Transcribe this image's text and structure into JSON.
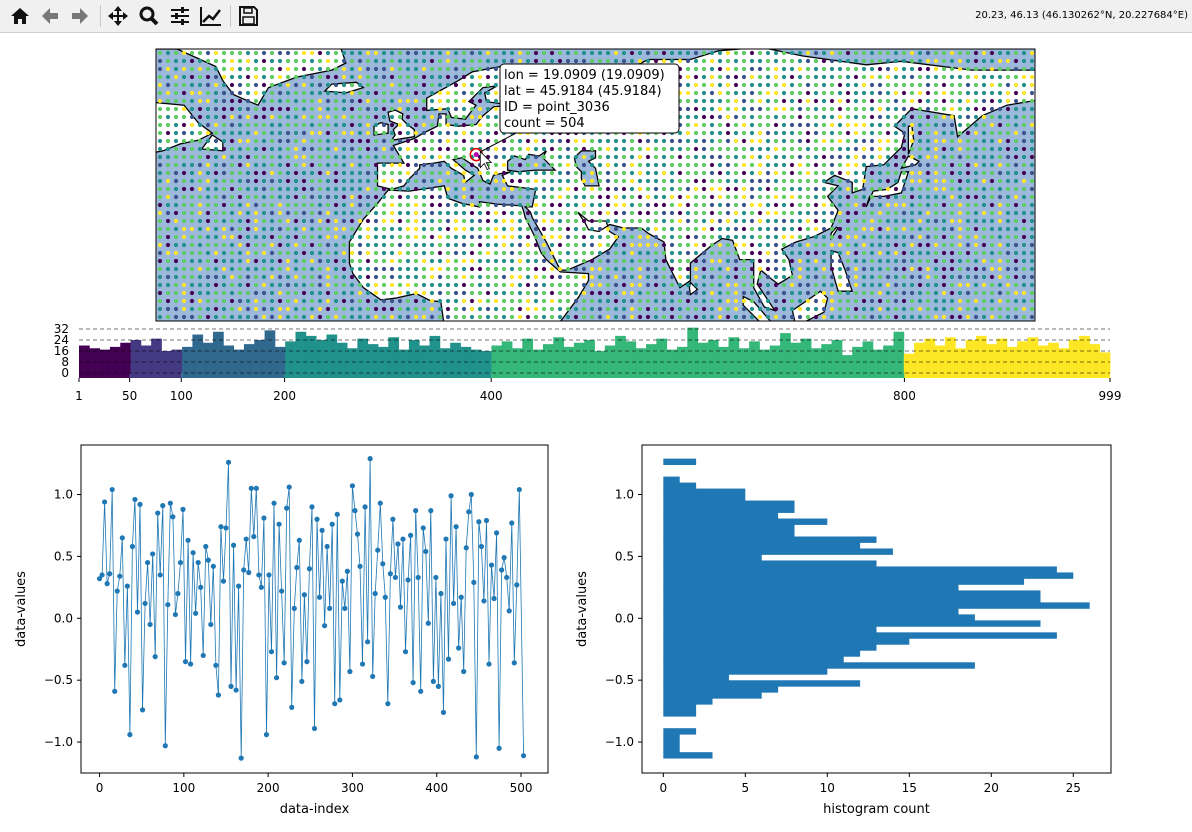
{
  "toolbar": {
    "buttons": [
      {
        "name": "home",
        "icon": "home-icon"
      },
      {
        "name": "back",
        "icon": "arrow-left-icon"
      },
      {
        "name": "forward",
        "icon": "arrow-right-icon"
      },
      {
        "name": "pan",
        "icon": "move-icon"
      },
      {
        "name": "zoom",
        "icon": "magnifier-icon"
      },
      {
        "name": "configure-subplots",
        "icon": "sliders-icon"
      },
      {
        "name": "edit-axes",
        "icon": "chart-line-icon"
      },
      {
        "name": "save",
        "icon": "floppy-disk-icon"
      }
    ],
    "status": "20.23, 46.13 (46.130262°N, 20.227684°E)"
  },
  "map": {
    "ocean_color": "#9cb9dc",
    "land_color": "#ffffff",
    "dot_colors": [
      "#440154",
      "#3b528b",
      "#21918c",
      "#5ec962",
      "#fde725"
    ],
    "extent_lon": [
      -72,
      178
    ],
    "extent_lat": [
      -1.5,
      76
    ],
    "selected_point": {
      "lon": 19.0909,
      "lat": 45.9184
    },
    "tooltip": {
      "line1": "lon = 19.0909 (19.0909)",
      "line2": "lat = 45.9184 (45.9184)",
      "line3": "ID = point_3036",
      "line4": "count = 504"
    }
  },
  "chart_data": [
    {
      "type": "bar",
      "xlim": [
        1,
        999
      ],
      "ylim": [
        0,
        32
      ],
      "yticks": [
        "0",
        "8",
        "16",
        "24",
        "32"
      ],
      "xticks": [
        "1",
        "50",
        "100",
        "200",
        "400",
        "800",
        "999"
      ],
      "grid": "dashed horizontal",
      "boundaries": [
        1,
        50,
        100,
        200,
        400,
        800,
        999
      ],
      "segment_colors": [
        "#440154",
        "#443983",
        "#31688e",
        "#21918c",
        "#35b779",
        "#fde725"
      ],
      "counts": [
        20,
        18,
        17,
        19,
        22,
        24,
        20,
        25,
        16,
        17,
        19,
        28,
        22,
        30,
        20,
        17,
        21,
        24,
        31,
        19,
        23,
        30,
        27,
        24,
        28,
        22,
        18,
        25,
        21,
        19,
        26,
        17,
        24,
        20,
        27,
        18,
        22,
        19,
        17,
        16,
        20,
        23,
        18,
        25,
        17,
        21,
        26,
        19,
        22,
        24,
        16,
        20,
        27,
        23,
        18,
        21,
        25,
        17,
        19,
        33,
        22,
        24,
        19,
        26,
        18,
        23,
        17,
        20,
        29,
        22,
        25,
        18,
        21,
        24,
        13,
        19,
        23,
        17,
        20,
        30,
        14,
        22,
        25,
        20,
        26,
        18,
        24,
        27,
        21,
        25,
        19,
        23,
        26,
        20,
        22,
        18,
        24,
        27,
        21,
        15
      ]
    },
    {
      "type": "line",
      "xlabel": "data-index",
      "ylabel": "data-values",
      "xlim": [
        -22,
        532
      ],
      "ylim": [
        -1.25,
        1.4
      ],
      "xticks": [
        "0",
        "100",
        "200",
        "300",
        "400",
        "500"
      ],
      "yticks": [
        "−1.0",
        "−0.5",
        "0.0",
        "0.5",
        "1.0"
      ],
      "color": "#1f77b4",
      "x": [
        0,
        3,
        6,
        9,
        12,
        15,
        18,
        21,
        24,
        27,
        30,
        33,
        36,
        39,
        42,
        45,
        48,
        51,
        54,
        57,
        60,
        63,
        66,
        69,
        72,
        75,
        78,
        81,
        84,
        87,
        90,
        93,
        96,
        99,
        102,
        105,
        108,
        111,
        114,
        117,
        120,
        123,
        126,
        129,
        132,
        135,
        138,
        141,
        144,
        147,
        150,
        153,
        156,
        159,
        162,
        165,
        168,
        171,
        174,
        177,
        180,
        183,
        186,
        189,
        192,
        195,
        198,
        201,
        204,
        207,
        210,
        213,
        216,
        219,
        222,
        225,
        228,
        231,
        234,
        237,
        240,
        243,
        246,
        249,
        252,
        255,
        258,
        261,
        264,
        267,
        270,
        273,
        276,
        279,
        282,
        285,
        288,
        291,
        294,
        297,
        300,
        303,
        306,
        309,
        312,
        315,
        318,
        321,
        324,
        327,
        330,
        333,
        336,
        339,
        342,
        345,
        348,
        351,
        354,
        357,
        360,
        363,
        366,
        369,
        372,
        375,
        378,
        381,
        384,
        387,
        390,
        393,
        396,
        399,
        402,
        405,
        408,
        411,
        414,
        417,
        420,
        423,
        426,
        429,
        432,
        435,
        438,
        441,
        444,
        447,
        450,
        453,
        456,
        459,
        462,
        465,
        468,
        471,
        474,
        477,
        480,
        483,
        486,
        489,
        492,
        495,
        498,
        503
      ],
      "y": [
        0.32,
        0.35,
        0.94,
        0.28,
        0.36,
        1.04,
        -0.59,
        0.22,
        0.34,
        0.65,
        -0.38,
        0.26,
        -0.94,
        0.58,
        0.96,
        0.05,
        0.92,
        -0.74,
        0.12,
        0.45,
        -0.05,
        0.52,
        -0.31,
        0.85,
        0.35,
        0.91,
        -1.03,
        0.11,
        0.93,
        0.82,
        0.03,
        0.2,
        0.45,
        0.88,
        -0.35,
        0.63,
        -0.37,
        0.53,
        0.04,
        0.45,
        0.25,
        -0.3,
        0.58,
        0.47,
        -0.05,
        0.42,
        -0.38,
        -0.62,
        0.74,
        0.3,
        0.73,
        1.26,
        -0.55,
        0.59,
        -0.58,
        0.26,
        -1.13,
        0.39,
        0.64,
        0.37,
        1.05,
        0.66,
        1.05,
        0.35,
        0.25,
        0.81,
        -0.94,
        0.35,
        -0.27,
        0.93,
        -0.48,
        0.76,
        0.22,
        -0.36,
        0.89,
        1.06,
        -0.72,
        0.08,
        0.41,
        0.63,
        -0.51,
        0.19,
        -0.35,
        0.4,
        0.9,
        -0.89,
        0.8,
        0.17,
        0.71,
        -0.06,
        0.58,
        0.08,
        0.76,
        -0.69,
        0.84,
        -0.66,
        0.3,
        0.08,
        0.38,
        -0.43,
        1.07,
        0.87,
        0.68,
        0.42,
        -0.37,
        0.9,
        -0.19,
        1.29,
        -0.47,
        0.2,
        0.55,
        0.93,
        0.44,
        0.17,
        -0.69,
        0.36,
        0.8,
        0.33,
        0.6,
        0.09,
        0.64,
        -0.27,
        0.31,
        0.67,
        -0.52,
        0.87,
        0.33,
        -0.59,
        0.73,
        0.54,
        -0.04,
        0.87,
        -0.51,
        0.33,
        -0.55,
        0.2,
        -0.76,
        0.64,
        -0.33,
        0.99,
        0.12,
        0.74,
        -0.24,
        0.17,
        -0.43,
        0.57,
        0.86,
        1.0,
        0.29,
        -1.12,
        0.78,
        0.58,
        0.14,
        0.79,
        -0.37,
        0.43,
        0.16,
        0.69,
        -1.05,
        0.39,
        0.49,
        0.33,
        0.06,
        0.77,
        -0.36,
        0.27,
        1.04,
        -1.11
      ]
    },
    {
      "type": "bar",
      "orientation": "horizontal",
      "xlabel": "histogram count",
      "ylabel": "data-values",
      "xlim": [
        -1.3,
        27.3
      ],
      "ylim": [
        -1.25,
        1.4
      ],
      "xticks": [
        "0",
        "5",
        "10",
        "15",
        "20",
        "25"
      ],
      "yticks": [
        "−1.0",
        "−0.5",
        "0.0",
        "0.5",
        "1.0"
      ],
      "color": "#1f77b4",
      "bin_range": [
        -1.13,
        1.29
      ],
      "counts": [
        3,
        1,
        1,
        1,
        2,
        0,
        0,
        2,
        2,
        3,
        6,
        7,
        12,
        4,
        10,
        19,
        11,
        12,
        13,
        15,
        24,
        13,
        23,
        19,
        18,
        26,
        23,
        23,
        18,
        22,
        25,
        24,
        13,
        6,
        14,
        12,
        13,
        8,
        8,
        10,
        7,
        8,
        8,
        5,
        5,
        2,
        1,
        0,
        0,
        2
      ]
    }
  ]
}
